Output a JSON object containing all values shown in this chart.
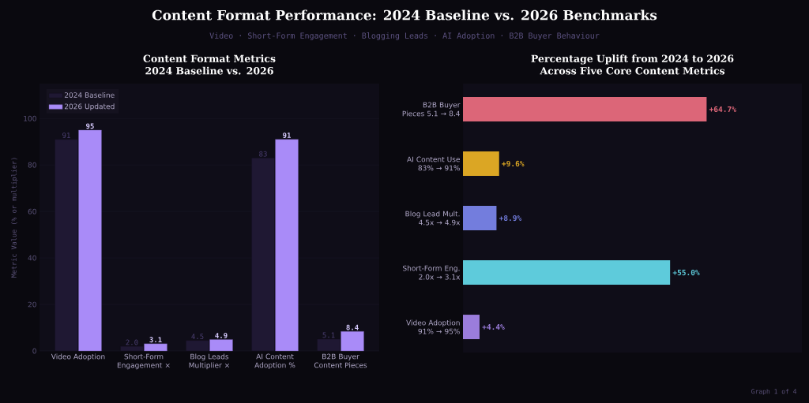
{
  "chart_data": [
    {
      "type": "other",
      "title": "Content Format Performance: 2024 Baseline vs. 2026 Benchmarks",
      "subtitle": "Video · Short-Form Engagement · Blogging Leads · AI Adoption · B2B Buyer Behaviour",
      "annotations": [
        "Graph 1 of 4"
      ]
    },
    {
      "type": "bar",
      "title": "Content Format Metrics 2024 Baseline vs. 2026",
      "ylabel": "Metric Value (% or multiplier)",
      "categories": [
        "Video Adoption",
        "Short-Form Engagement ×",
        "Blog Leads Multiplier ×",
        "AI Content Adoption %",
        "B2B Buyer Content Pieces"
      ],
      "series": [
        {
          "name": "2024 Baseline",
          "color": "#1f1833",
          "values": [
            91,
            2.0,
            4.5,
            83,
            5.1
          ],
          "value_labels": [
            "91",
            "2.0",
            "4.5",
            "83",
            "5.1"
          ]
        },
        {
          "name": "2026 Updated",
          "color": "#a98bf8",
          "values": [
            95,
            3.1,
            4.9,
            91,
            8.4
          ],
          "value_labels": [
            "95",
            "3.1",
            "4.9",
            "91",
            "8.4"
          ]
        }
      ],
      "ylim": [
        0,
        115
      ],
      "yticks": [
        0,
        20,
        40,
        60,
        80,
        100
      ],
      "grid": "y",
      "legend": "top left"
    },
    {
      "type": "bar",
      "orientation": "horizontal",
      "title": "Percentage Uplift from 2024 to 2026 Across Five Core Content Metrics",
      "categories": [
        "B2B Buyer Pieces 5.1 → 8.4",
        "AI Content Use 83% → 91%",
        "Blog Lead Mult. 4.5x → 4.9x",
        "Short-Form Eng. 2.0x → 3.1x",
        "Video Adoption 91% → 95%"
      ],
      "values": [
        64.7,
        9.6,
        8.9,
        55.0,
        4.4
      ],
      "value_labels": [
        "+64.7%",
        "+9.6%",
        "+8.9%",
        "+55.0%",
        "+4.4%"
      ],
      "colors": [
        "#dc6678",
        "#dba624",
        "#737ddd",
        "#5ecbdb",
        "#9b7ddc"
      ],
      "xlim": [
        0,
        90
      ],
      "tick_labels": "y"
    }
  ]
}
